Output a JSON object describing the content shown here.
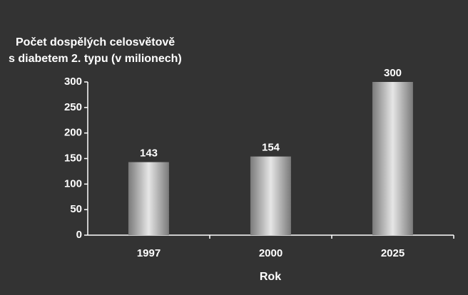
{
  "chart_data": {
    "type": "bar",
    "title": [
      "Počet dospělých celosvětově",
      "s diabetem 2. typu (v milionech)"
    ],
    "x_label": "Rok",
    "categories": [
      "1997",
      "2000",
      "2025"
    ],
    "values": [
      143,
      154,
      300
    ],
    "color": "#e6e6e6",
    "ylim": [
      0,
      300
    ],
    "yticks": [
      0,
      50,
      100,
      150,
      200,
      250,
      300
    ],
    "grid": false
  }
}
